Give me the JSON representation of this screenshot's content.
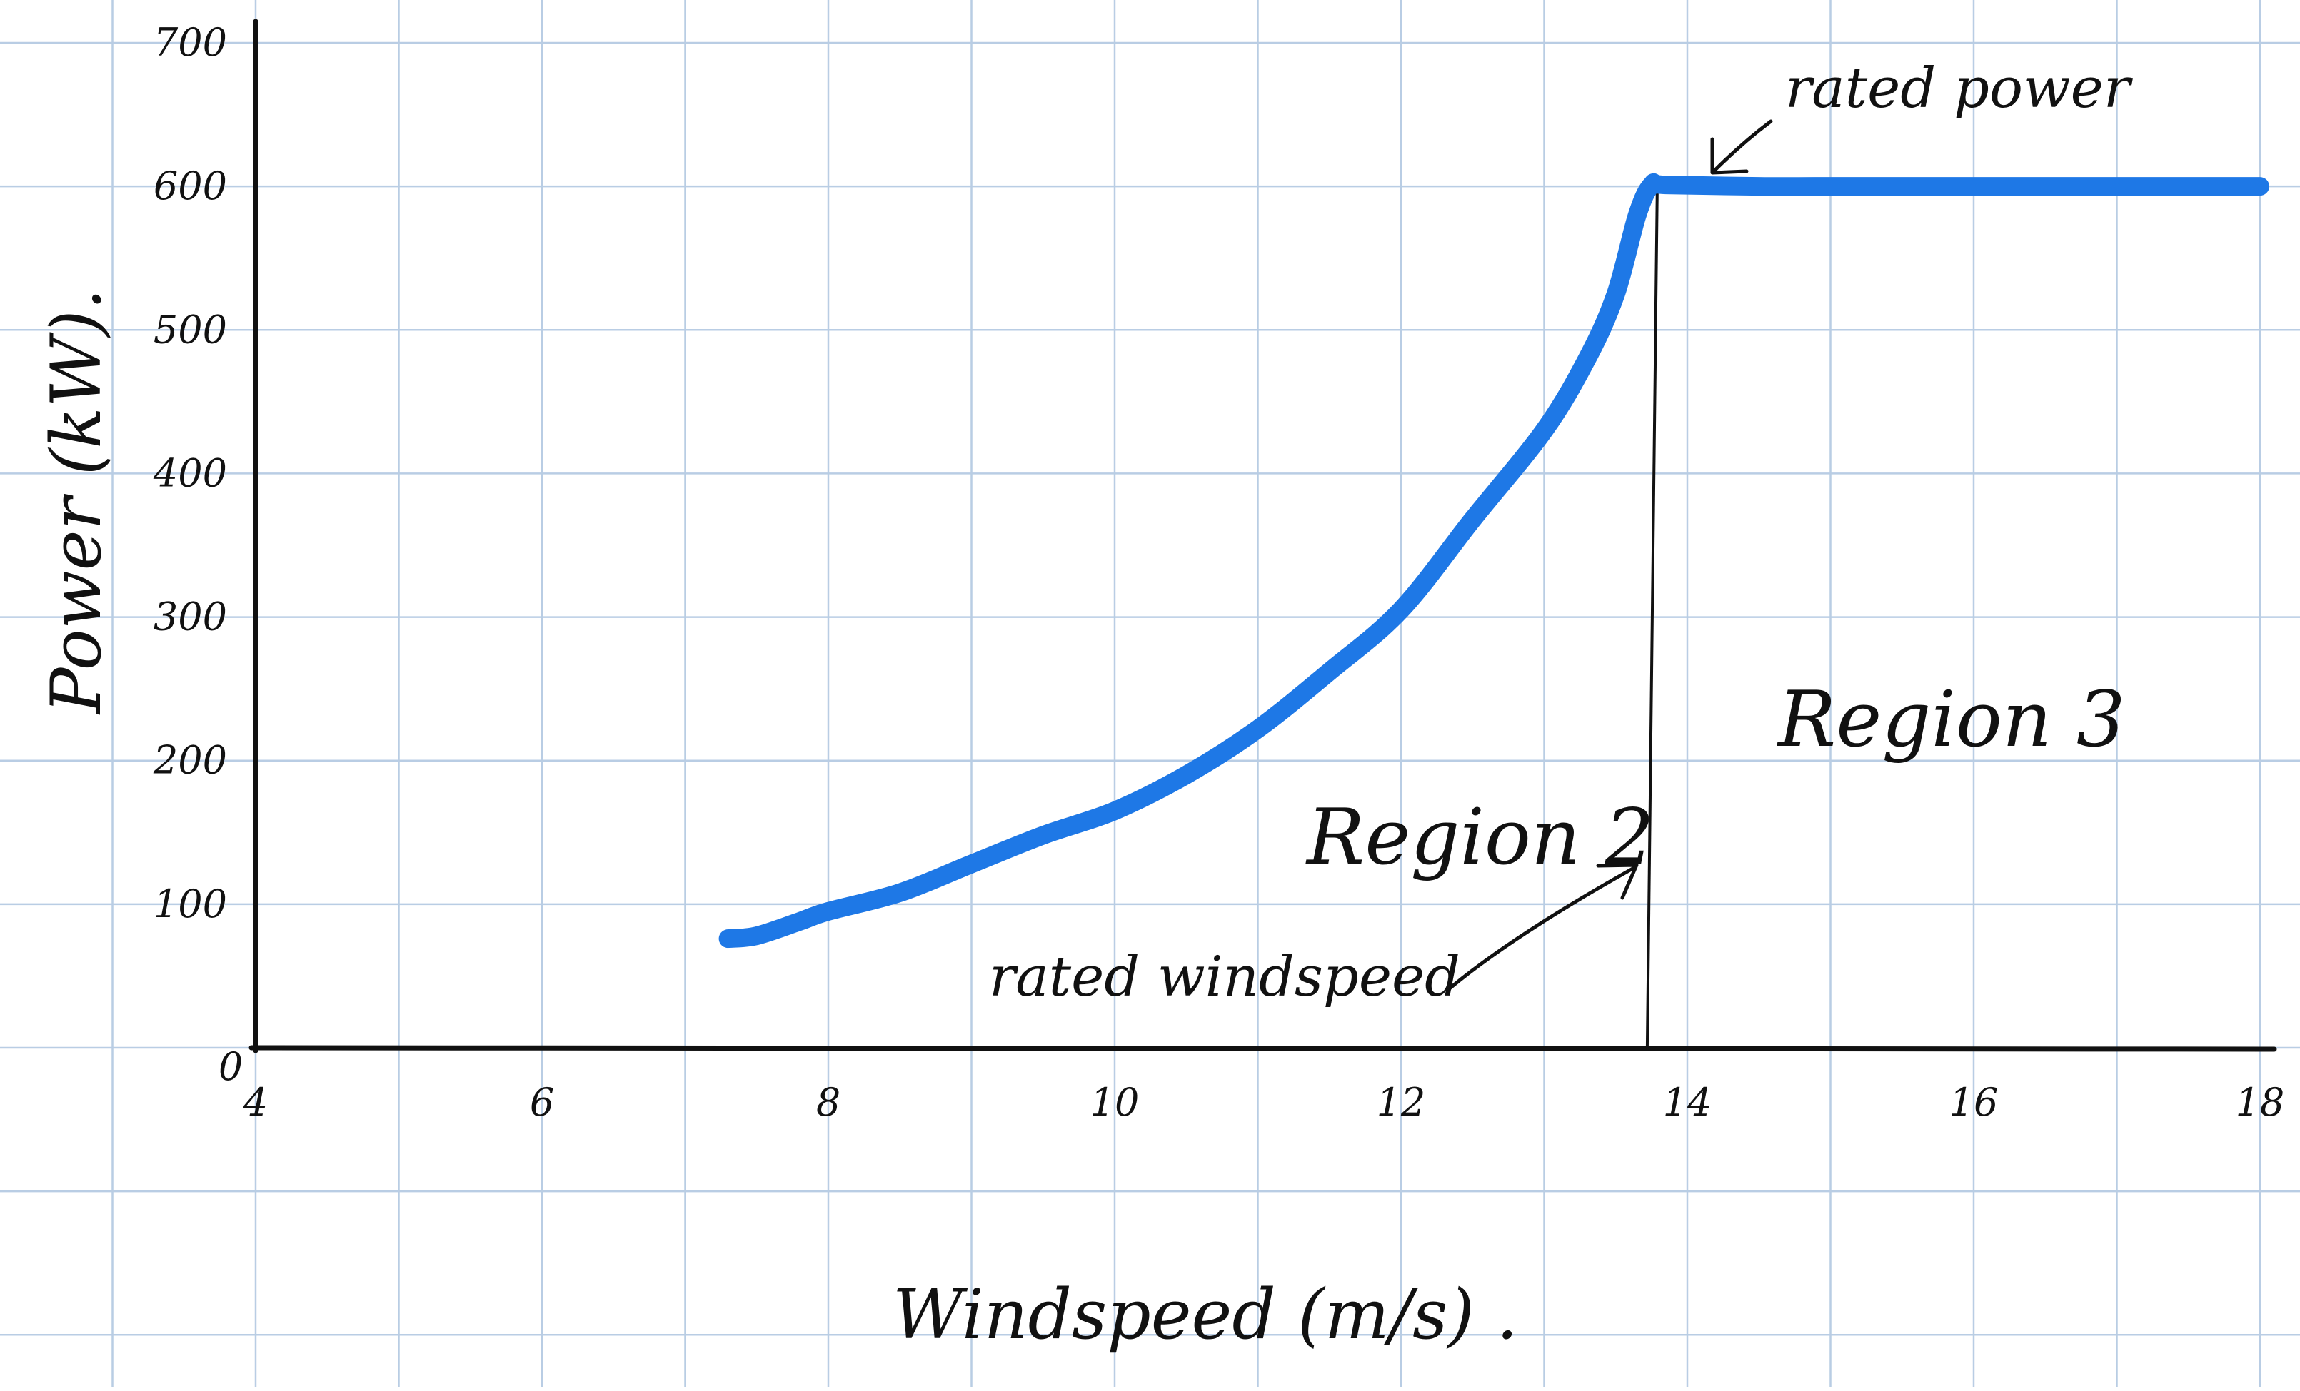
{
  "colors": {
    "background": "#ffffff",
    "grid": "#b9cde4",
    "axis": "#111111",
    "curve": "#1e78e6",
    "ink": "#111111"
  },
  "chart_data": {
    "type": "line",
    "title": "",
    "xlabel": "Windspeed (m/s) .",
    "ylabel": "Power (kW).",
    "xlim": [
      4,
      18
    ],
    "ylim": [
      0,
      700
    ],
    "x_ticks": [
      "4",
      "6",
      "8",
      "10",
      "12",
      "14",
      "16",
      "18"
    ],
    "y_ticks": [
      "0",
      "100",
      "200",
      "300",
      "400",
      "500",
      "600",
      "700"
    ],
    "grid": true,
    "style": "hand-drawn on grid paper",
    "series": [
      {
        "x": [
          7.3,
          7.5,
          7.8,
          8.0,
          8.5,
          9.0,
          9.5,
          10.0,
          10.5,
          11.0,
          11.5,
          12.0,
          12.5,
          13.0,
          13.3,
          13.5,
          13.65,
          13.75,
          13.85,
          14.5,
          15.0,
          16.0,
          17.0,
          18.0
        ],
        "y": [
          76,
          78,
          88,
          95,
          108,
          128,
          148,
          165,
          190,
          222,
          262,
          305,
          368,
          430,
          480,
          525,
          580,
          601,
          601,
          600,
          600,
          600,
          600,
          600
        ]
      }
    ],
    "annotations": {
      "rated_power": "rated power",
      "rated_windspeed": "rated windspeed",
      "region_2": "Region 2",
      "region_3": "Region 3",
      "rated_windspeed_x": 13.75,
      "rated_power_y": 600
    }
  }
}
